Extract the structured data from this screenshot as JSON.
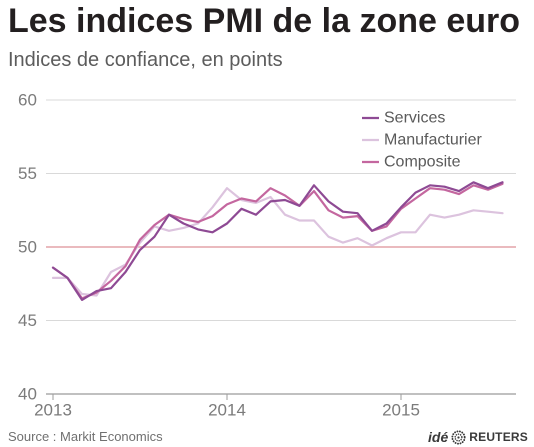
{
  "chart_data": {
    "type": "line",
    "title": "Les indices PMI de la zone euro",
    "subtitle": "Indices de confiance, en points",
    "x": [
      "2013-01",
      "2013-02",
      "2013-03",
      "2013-04",
      "2013-05",
      "2013-06",
      "2013-07",
      "2013-08",
      "2013-09",
      "2013-10",
      "2013-11",
      "2013-12",
      "2014-01",
      "2014-02",
      "2014-03",
      "2014-04",
      "2014-05",
      "2014-06",
      "2014-07",
      "2014-08",
      "2014-09",
      "2014-10",
      "2014-11",
      "2014-12",
      "2015-01",
      "2015-02",
      "2015-03",
      "2015-04",
      "2015-05",
      "2015-06",
      "2015-07",
      "2015-08"
    ],
    "x_tick_labels": [
      "2013",
      "2014",
      "2015"
    ],
    "y_ticks": [
      40,
      45,
      50,
      55,
      60
    ],
    "ylim": [
      40,
      60
    ],
    "grid": true,
    "highlight_line": 50,
    "legend_position": "top-right",
    "series": [
      {
        "name": "Services",
        "color": "#8e4a94",
        "values": [
          48.6,
          47.9,
          46.4,
          47.0,
          47.2,
          48.3,
          49.8,
          50.7,
          52.2,
          51.6,
          51.2,
          51.0,
          51.6,
          52.6,
          52.2,
          53.1,
          53.2,
          52.8,
          54.2,
          53.1,
          52.4,
          52.3,
          51.1,
          51.6,
          52.7,
          53.7,
          54.2,
          54.1,
          53.8,
          54.4,
          54.0,
          54.4
        ]
      },
      {
        "name": "Manufacturier",
        "color": "#dcc3de",
        "values": [
          47.9,
          47.9,
          46.8,
          46.7,
          48.3,
          48.8,
          50.3,
          51.4,
          51.1,
          51.3,
          51.6,
          52.7,
          54.0,
          53.2,
          53.0,
          53.4,
          52.2,
          51.8,
          51.8,
          50.7,
          50.3,
          50.6,
          50.1,
          50.6,
          51.0,
          51.0,
          52.2,
          52.0,
          52.2,
          52.5,
          52.4,
          52.3
        ]
      },
      {
        "name": "Composite",
        "color": "#c4679f",
        "values": [
          48.6,
          47.9,
          46.5,
          46.9,
          47.7,
          48.7,
          50.5,
          51.5,
          52.2,
          51.9,
          51.7,
          52.1,
          52.9,
          53.3,
          53.1,
          54.0,
          53.5,
          52.8,
          53.8,
          52.5,
          52.0,
          52.1,
          51.1,
          51.4,
          52.6,
          53.3,
          54.0,
          53.9,
          53.6,
          54.2,
          53.9,
          54.3
        ]
      }
    ]
  },
  "colors": {
    "title": "#231f20",
    "grid": "#d9d9d9",
    "highlight_line": "#e4a4a8",
    "axis": "#9b9b9b"
  },
  "footer": {
    "source": "Source : Markit Economics",
    "logo": {
      "prefix": "idé",
      "name": "REUTERS",
      "icon": "reuters-dot-logo-icon",
      "color": "#3a3a3a"
    }
  }
}
